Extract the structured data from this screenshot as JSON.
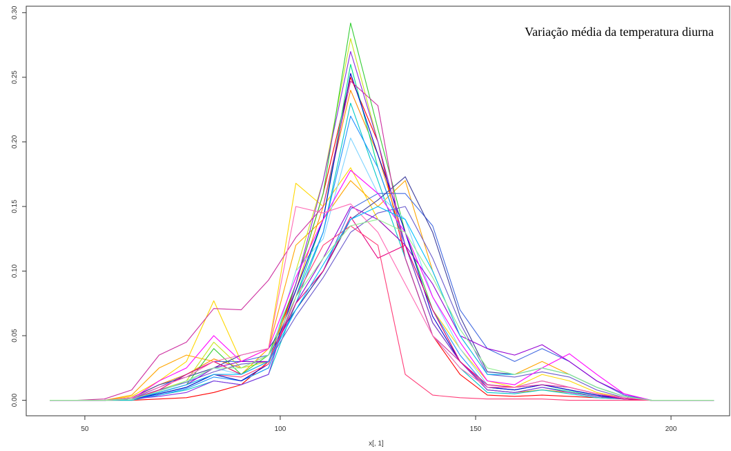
{
  "chart_data": {
    "type": "line",
    "title": "Variação média da temperatura diurna",
    "xlabel": "x[, 1]",
    "ylabel": "",
    "xlim": [
      35,
      215
    ],
    "ylim": [
      -0.012,
      0.305
    ],
    "x_ticks": [
      50,
      100,
      150,
      200
    ],
    "y_ticks": [
      0.0,
      0.05,
      0.1,
      0.15,
      0.2,
      0.25,
      0.3
    ],
    "x_tick_labels": [
      "50",
      "100",
      "150",
      "200"
    ],
    "y_tick_labels": [
      "0.00",
      "0.05",
      "0.10",
      "0.15",
      "0.20",
      "0.25",
      "0.30"
    ],
    "grid": false,
    "legend": "none",
    "x": [
      41,
      48,
      55,
      62,
      69,
      76,
      83,
      90,
      97,
      104,
      111,
      118,
      125,
      132,
      139,
      146,
      153,
      160,
      167,
      174,
      181,
      188,
      195,
      202,
      211
    ],
    "series": [
      {
        "color": "#ff0000",
        "values": [
          0,
          0,
          0,
          0,
          0.001,
          0.002,
          0.006,
          0.012,
          0.03,
          0.09,
          0.16,
          0.25,
          0.2,
          0.11,
          0.05,
          0.02,
          0.004,
          0.003,
          0.004,
          0.003,
          0.002,
          0.001,
          0,
          0,
          0
        ]
      },
      {
        "color": "#ff8c00",
        "values": [
          0,
          0,
          0,
          0.002,
          0.012,
          0.02,
          0.032,
          0.025,
          0.035,
          0.085,
          0.15,
          0.24,
          0.19,
          0.12,
          0.06,
          0.03,
          0.008,
          0.006,
          0.008,
          0.006,
          0.003,
          0.001,
          0,
          0,
          0
        ]
      },
      {
        "color": "#ffd700",
        "values": [
          0,
          0,
          0,
          0.003,
          0.015,
          0.03,
          0.077,
          0.03,
          0.04,
          0.168,
          0.15,
          0.18,
          0.14,
          0.12,
          0.07,
          0.04,
          0.015,
          0.01,
          0.02,
          0.015,
          0.006,
          0.002,
          0,
          0,
          0
        ]
      },
      {
        "color": "#ffa500",
        "values": [
          0,
          0,
          0,
          0.004,
          0.025,
          0.035,
          0.03,
          0.02,
          0.04,
          0.12,
          0.14,
          0.17,
          0.15,
          0.17,
          0.1,
          0.05,
          0.02,
          0.02,
          0.03,
          0.02,
          0.01,
          0.003,
          0,
          0,
          0
        ]
      },
      {
        "color": "#c8e61e",
        "values": [
          0,
          0,
          0,
          0.001,
          0.008,
          0.015,
          0.045,
          0.025,
          0.03,
          0.1,
          0.17,
          0.28,
          0.2,
          0.12,
          0.06,
          0.03,
          0.01,
          0.008,
          0.012,
          0.008,
          0.004,
          0.001,
          0,
          0,
          0
        ]
      },
      {
        "color": "#32cd32",
        "values": [
          0,
          0,
          0,
          0.001,
          0.006,
          0.012,
          0.04,
          0.02,
          0.035,
          0.09,
          0.16,
          0.292,
          0.21,
          0.13,
          0.07,
          0.03,
          0.01,
          0.01,
          0.015,
          0.01,
          0.005,
          0.002,
          0,
          0,
          0
        ]
      },
      {
        "color": "#00e08c",
        "values": [
          0,
          0,
          0,
          0.001,
          0.005,
          0.01,
          0.02,
          0.015,
          0.025,
          0.08,
          0.14,
          0.26,
          0.18,
          0.12,
          0.06,
          0.03,
          0.008,
          0.006,
          0.01,
          0.007,
          0.003,
          0.001,
          0,
          0,
          0
        ]
      },
      {
        "color": "#00c8c8",
        "values": [
          0,
          0,
          0,
          0,
          0.004,
          0.008,
          0.015,
          0.012,
          0.02,
          0.075,
          0.13,
          0.23,
          0.17,
          0.11,
          0.05,
          0.025,
          0.006,
          0.005,
          0.008,
          0.005,
          0.002,
          0.001,
          0,
          0,
          0
        ]
      },
      {
        "color": "#7fd4ff",
        "values": [
          0,
          0,
          0,
          0.001,
          0.007,
          0.014,
          0.025,
          0.02,
          0.03,
          0.1,
          0.125,
          0.203,
          0.16,
          0.14,
          0.08,
          0.04,
          0.012,
          0.01,
          0.015,
          0.01,
          0.005,
          0.002,
          0,
          0,
          0
        ]
      },
      {
        "color": "#1e90ff",
        "values": [
          0,
          0,
          0,
          0.001,
          0.004,
          0.009,
          0.018,
          0.015,
          0.025,
          0.08,
          0.13,
          0.22,
          0.18,
          0.12,
          0.07,
          0.035,
          0.01,
          0.008,
          0.012,
          0.008,
          0.004,
          0.001,
          0,
          0,
          0
        ]
      },
      {
        "color": "#0000cd",
        "values": [
          0,
          0,
          0,
          0.001,
          0.005,
          0.01,
          0.02,
          0.015,
          0.028,
          0.085,
          0.14,
          0.253,
          0.19,
          0.13,
          0.065,
          0.03,
          0.01,
          0.008,
          0.012,
          0.008,
          0.004,
          0.001,
          0,
          0,
          0
        ]
      },
      {
        "color": "#4169e1",
        "values": [
          0,
          0,
          0,
          0.001,
          0.01,
          0.02,
          0.03,
          0.03,
          0.035,
          0.07,
          0.1,
          0.148,
          0.16,
          0.16,
          0.135,
          0.07,
          0.04,
          0.03,
          0.04,
          0.03,
          0.015,
          0.004,
          0,
          0,
          0
        ]
      },
      {
        "color": "#3c3c9c",
        "values": [
          0,
          0,
          0,
          0.002,
          0.012,
          0.018,
          0.025,
          0.035,
          0.04,
          0.07,
          0.1,
          0.14,
          0.155,
          0.173,
          0.13,
          0.065,
          0.022,
          0.02,
          0.025,
          0.02,
          0.01,
          0.003,
          0,
          0,
          0
        ]
      },
      {
        "color": "#6a5acd",
        "values": [
          0,
          0,
          0,
          0.001,
          0.008,
          0.014,
          0.022,
          0.028,
          0.03,
          0.065,
          0.095,
          0.13,
          0.145,
          0.15,
          0.11,
          0.06,
          0.02,
          0.018,
          0.022,
          0.018,
          0.008,
          0.002,
          0,
          0,
          0
        ]
      },
      {
        "color": "#8a2be2",
        "values": [
          0,
          0,
          0,
          0.001,
          0.003,
          0.006,
          0.015,
          0.012,
          0.02,
          0.09,
          0.17,
          0.27,
          0.2,
          0.12,
          0.06,
          0.03,
          0.008,
          0.006,
          0.01,
          0.006,
          0.003,
          0.001,
          0,
          0,
          0
        ]
      },
      {
        "color": "#9400d3",
        "values": [
          0,
          0,
          0,
          0.001,
          0.006,
          0.012,
          0.025,
          0.03,
          0.03,
          0.075,
          0.11,
          0.15,
          0.14,
          0.12,
          0.09,
          0.05,
          0.04,
          0.035,
          0.043,
          0.03,
          0.015,
          0.005,
          0,
          0,
          0
        ]
      },
      {
        "color": "#ff00ff",
        "values": [
          0,
          0,
          0,
          0.001,
          0.015,
          0.025,
          0.05,
          0.03,
          0.04,
          0.095,
          0.14,
          0.178,
          0.16,
          0.13,
          0.08,
          0.045,
          0.015,
          0.012,
          0.025,
          0.036,
          0.02,
          0.005,
          0,
          0,
          0
        ]
      },
      {
        "color": "#cd2fa0",
        "values": [
          0,
          0,
          0.001,
          0.008,
          0.035,
          0.045,
          0.071,
          0.07,
          0.093,
          0.126,
          0.15,
          0.247,
          0.228,
          0.11,
          0.05,
          0.03,
          0.01,
          0.01,
          0.012,
          0.01,
          0.005,
          0.002,
          0,
          0,
          0
        ]
      },
      {
        "color": "#e6007e",
        "values": [
          0,
          0,
          0,
          0.001,
          0.008,
          0.02,
          0.03,
          0.02,
          0.03,
          0.075,
          0.1,
          0.142,
          0.11,
          0.12,
          0.07,
          0.03,
          0.012,
          0.01,
          0.015,
          0.01,
          0.005,
          0.001,
          0,
          0,
          0
        ]
      },
      {
        "color": "#ff3c78",
        "values": [
          0,
          0,
          0,
          0.001,
          0.006,
          0.012,
          0.02,
          0.018,
          0.028,
          0.08,
          0.12,
          0.135,
          0.12,
          0.02,
          0.004,
          0.002,
          0.001,
          0.001,
          0.001,
          0,
          0,
          0,
          0,
          0,
          0
        ]
      },
      {
        "color": "#ff69b4",
        "values": [
          0,
          0,
          0,
          0.002,
          0.01,
          0.018,
          0.03,
          0.035,
          0.04,
          0.15,
          0.145,
          0.152,
          0.13,
          0.09,
          0.05,
          0.025,
          0.01,
          0.01,
          0.015,
          0.01,
          0.005,
          0.002,
          0,
          0,
          0
        ]
      },
      {
        "color": "#00bfff",
        "values": [
          0,
          0,
          0,
          0.001,
          0.006,
          0.012,
          0.02,
          0.02,
          0.03,
          0.07,
          0.105,
          0.14,
          0.15,
          0.14,
          0.1,
          0.05,
          0.02,
          0.02,
          0.025,
          0.02,
          0.01,
          0.003,
          0,
          0,
          0
        ]
      },
      {
        "color": "#90ee90",
        "values": [
          0,
          0,
          0,
          0.001,
          0.007,
          0.015,
          0.025,
          0.025,
          0.035,
          0.08,
          0.11,
          0.135,
          0.14,
          0.13,
          0.095,
          0.055,
          0.025,
          0.02,
          0.025,
          0.02,
          0.01,
          0.003,
          0,
          0,
          0
        ]
      }
    ]
  }
}
